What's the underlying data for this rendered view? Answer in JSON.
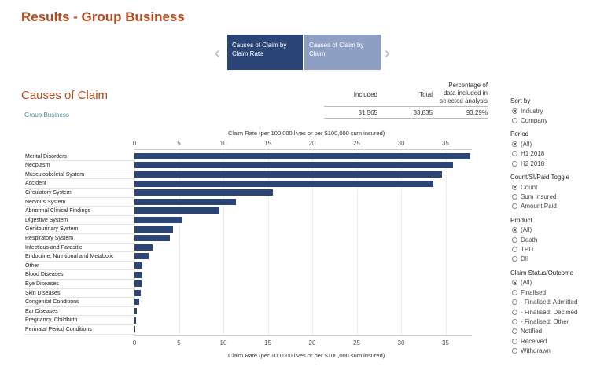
{
  "title": "Results - Group Business",
  "tabs": [
    {
      "label": "Causes of Claim by Claim Rate",
      "active": true
    },
    {
      "label": "Causes of Claim by Claim",
      "active": false
    }
  ],
  "section": {
    "title": "Causes of Claim",
    "subtitle": "Group Business"
  },
  "summary": {
    "headers": [
      "Included",
      "Total",
      "Percentage of data included in selected analysis"
    ],
    "values": [
      "31,565",
      "33,835",
      "93.29%"
    ]
  },
  "chart_data": {
    "type": "bar",
    "orientation": "horizontal",
    "xlabel": "Claim Rate (per 100,000 lives or per $100,000 sum insured)",
    "xlim": [
      0,
      38
    ],
    "ticks": [
      0,
      5,
      10,
      15,
      20,
      25,
      30,
      35
    ],
    "categories": [
      "Mental Disorders",
      "Neoplasm",
      "Musculoskeletal System",
      "Accident",
      "Circulatory System",
      "Nervous System",
      "Abnormal Clinical Findings",
      "Digestive System",
      "Genitourinary System",
      "Respiratory System",
      "Infectious and Parasitic",
      "Endocrine, Nutritional and Metabolic",
      "Other",
      "Blood Diseases",
      "Eye Diseases",
      "Skin Diseases",
      "Congenital Conditions",
      "Ear Diseases",
      "Pregnancy, Childbirth",
      "Perinatal Period Conditions"
    ],
    "values": [
      37.8,
      35.8,
      34.6,
      33.6,
      15.6,
      11.4,
      9.6,
      5.4,
      4.3,
      4.0,
      2.0,
      1.6,
      0.9,
      0.8,
      0.8,
      0.7,
      0.5,
      0.3,
      0.2,
      0.1
    ],
    "bar_color": "#2c4577"
  },
  "filters": [
    {
      "label": "Sort by",
      "options": [
        "Industry",
        "Company"
      ],
      "selected": 0
    },
    {
      "label": "Period",
      "options": [
        "(All)",
        "H1 2018",
        "H2 2018"
      ],
      "selected": 0
    },
    {
      "label": "Count/SI/Paid Toggle",
      "options": [
        "Count",
        "Sum Insured",
        "Amount Paid"
      ],
      "selected": 0
    },
    {
      "label": "Product",
      "options": [
        "(All)",
        "Death",
        "TPD",
        "DII"
      ],
      "selected": 0
    },
    {
      "label": "Claim Status/Outcome",
      "options": [
        "(All)",
        "Finalised",
        "- Finalised: Admitted",
        "- Finalised: Declined",
        "- Finalised: Other",
        "Notified",
        "Received",
        "Withdrawn"
      ],
      "selected": 0
    }
  ],
  "colors": {
    "title": "#b54a1e",
    "bar": "#2c4577",
    "tab_active": "#2c4577",
    "tab_inactive": "#8da0c3",
    "subtitle": "#4a8a93"
  }
}
